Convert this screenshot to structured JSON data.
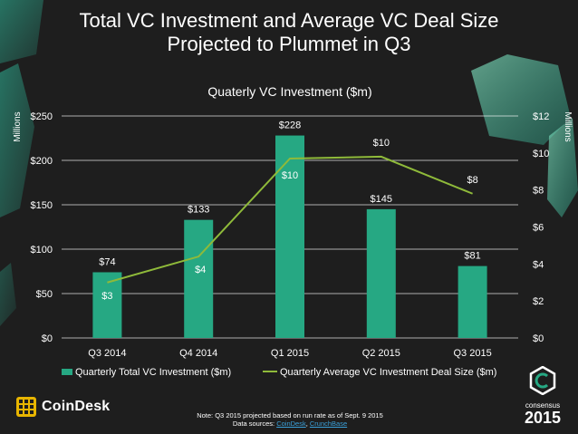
{
  "title_line1": "Total VC Investment and Average VC Deal Size",
  "title_line2": "Projected to Plummet in Q3",
  "chart_data": {
    "type": "bar",
    "title": "Quaterly VC Investment ($m)",
    "categories": [
      "Q3 2014",
      "Q4 2014",
      "Q1 2015",
      "Q2 2015",
      "Q3 2015"
    ],
    "series": [
      {
        "name": "Quarterly Total VC Investment ($m)",
        "type": "bar",
        "axis": "left",
        "values": [
          74,
          133,
          228,
          145,
          81
        ],
        "labels": [
          "$74",
          "$133",
          "$228",
          "$145",
          "$81"
        ],
        "color": "#26a883"
      },
      {
        "name": "Quarterly Average VC Investment Deal Size ($m)",
        "type": "line",
        "axis": "right",
        "values": [
          3,
          4.4,
          9.7,
          9.8,
          7.8
        ],
        "labels": [
          "$3",
          "$4",
          "$10",
          "$10",
          "$8"
        ],
        "color": "#8fba3a"
      }
    ],
    "y_left": {
      "label": "Millions",
      "ylim": [
        0,
        250
      ],
      "ticks": [
        0,
        50,
        100,
        150,
        200,
        250
      ],
      "tick_labels": [
        "$0",
        "$50",
        "$100",
        "$150",
        "$200",
        "$250"
      ]
    },
    "y_right": {
      "label": "Millions",
      "ylim": [
        0,
        12
      ],
      "ticks": [
        0,
        2,
        4,
        6,
        8,
        10,
        12
      ],
      "tick_labels": [
        "$0",
        "$2",
        "$4",
        "$6",
        "$8",
        "$10",
        "$12"
      ]
    },
    "grid": true,
    "legend": "bottom"
  },
  "footer": {
    "note": "Note: Q3 2015 projected based on run rate as of Sept. 9 2015",
    "sources_prefix": "Data sources: ",
    "source1": "CoinDesk",
    "separator": ", ",
    "source2": "CrunchBase"
  },
  "brand": {
    "coindesk": "CoinDesk",
    "consensus": "consensus",
    "consensus_year": "2015"
  },
  "colors": {
    "background": "#1e1e1e",
    "bar": "#26a883",
    "line": "#8fba3a",
    "decor": "#2fb89a"
  }
}
